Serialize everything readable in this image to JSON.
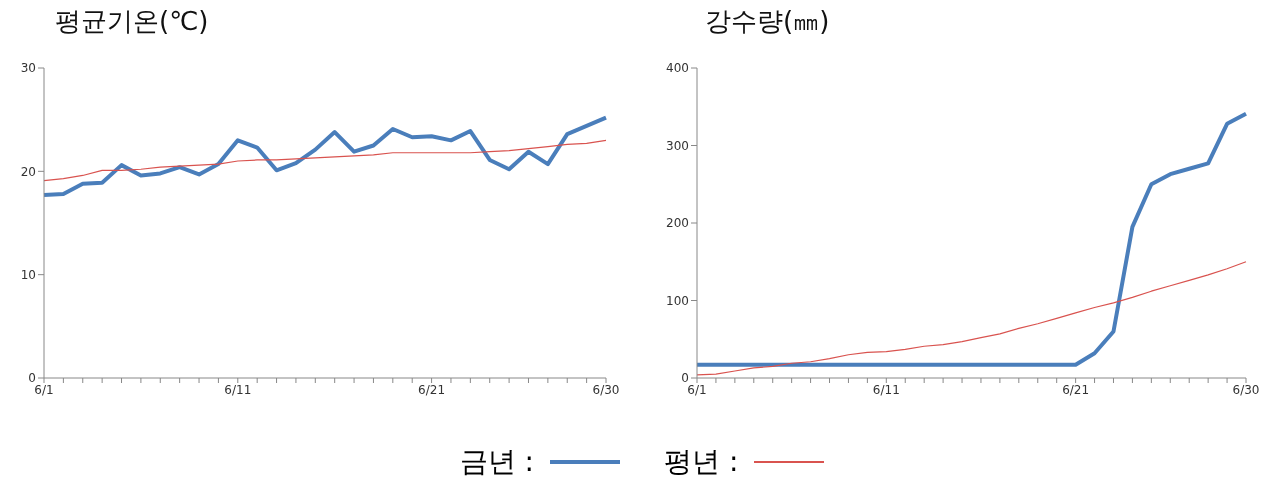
{
  "chart_data": [
    {
      "type": "line",
      "title": "평균기온(℃)",
      "categories": [
        "6/1",
        null,
        null,
        null,
        null,
        null,
        null,
        null,
        null,
        null,
        "6/11",
        null,
        null,
        null,
        null,
        null,
        null,
        null,
        null,
        null,
        "6/21",
        null,
        null,
        null,
        null,
        null,
        null,
        null,
        null,
        "6/30"
      ],
      "ylim": [
        0,
        30
      ],
      "yticks": [
        0,
        10,
        20,
        30
      ],
      "grid": false,
      "legend": "bottom",
      "marker": "none",
      "series": [
        {
          "name": "금년 :",
          "color": "#4a7ebb",
          "values": [
            17.7,
            17.8,
            18.8,
            18.9,
            20.6,
            19.6,
            19.8,
            20.4,
            19.7,
            20.7,
            23.0,
            22.3,
            20.1,
            20.8,
            22.1,
            23.8,
            21.9,
            22.5,
            24.1,
            23.3,
            23.4,
            23.0,
            23.9,
            21.1,
            20.2,
            21.9,
            20.7,
            23.6,
            24.4,
            25.2
          ]
        },
        {
          "name": "평년 :",
          "color": "#d9534f",
          "values": [
            19.1,
            19.3,
            19.6,
            20.1,
            20.1,
            20.2,
            20.4,
            20.5,
            20.6,
            20.7,
            21.0,
            21.1,
            21.1,
            21.2,
            21.3,
            21.4,
            21.5,
            21.6,
            21.8,
            21.8,
            21.8,
            21.8,
            21.8,
            21.9,
            22.0,
            22.2,
            22.4,
            22.6,
            22.7,
            23.0
          ]
        }
      ]
    },
    {
      "type": "line",
      "title": "강수량(㎜)",
      "categories": [
        "6/1",
        null,
        null,
        null,
        null,
        null,
        null,
        null,
        null,
        null,
        "6/11",
        null,
        null,
        null,
        null,
        null,
        null,
        null,
        null,
        null,
        "6/21",
        null,
        null,
        null,
        null,
        null,
        null,
        null,
        null,
        "6/30"
      ],
      "ylim": [
        0,
        400
      ],
      "yticks": [
        0,
        100,
        200,
        300,
        400
      ],
      "grid": false,
      "marker": "none",
      "series": [
        {
          "color": "#4a7ebb",
          "values": [
            17,
            17,
            17,
            17,
            17,
            17,
            17,
            17,
            17,
            17,
            17,
            17,
            17,
            17,
            17,
            17,
            17,
            17,
            17,
            17,
            17,
            32,
            60,
            195,
            250,
            263,
            270,
            277,
            328,
            341
          ]
        },
        {
          "color": "#d9534f",
          "values": [
            4,
            5,
            9,
            13,
            15,
            19,
            21,
            25,
            30,
            33,
            34,
            37,
            41,
            43,
            47,
            52,
            57,
            64,
            70,
            77,
            84,
            91,
            97,
            104,
            112,
            119,
            126,
            133,
            141,
            150
          ]
        }
      ]
    }
  ]
}
